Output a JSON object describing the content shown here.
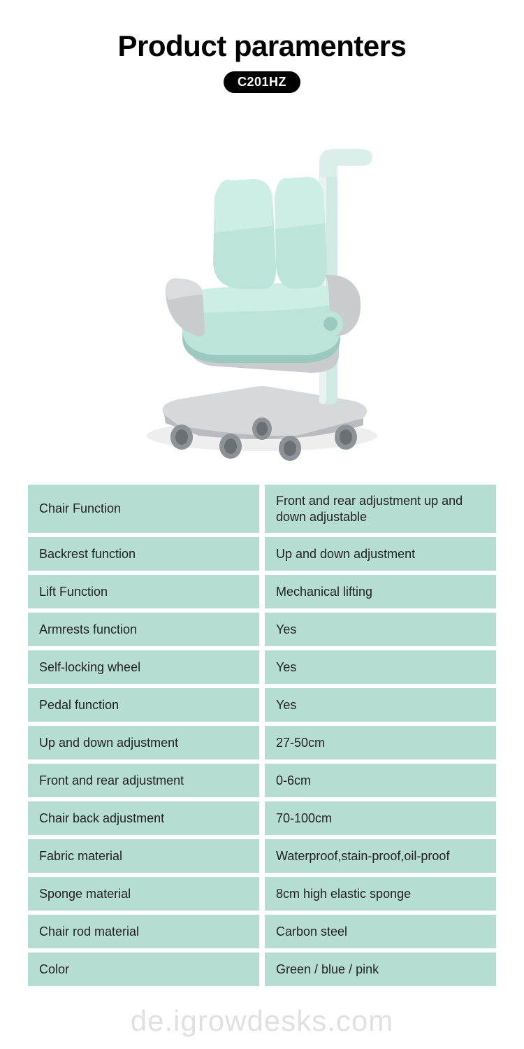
{
  "header": {
    "title": "Product paramenters",
    "model": "C201HZ"
  },
  "table": {
    "row_bg_color": "#b6ddd2",
    "row_gap_color": "#ffffff",
    "text_color": "#222222",
    "font_size": 18,
    "rows": [
      {
        "label": "Chair Function",
        "value": "Front and rear adjustment up and down adjustable"
      },
      {
        "label": "Backrest function",
        "value": "Up and down adjustment"
      },
      {
        "label": "Lift Function",
        "value": "Mechanical lifting"
      },
      {
        "label": "Armrests function",
        "value": "Yes"
      },
      {
        "label": "Self-locking wheel",
        "value": "Yes"
      },
      {
        "label": "Pedal function",
        "value": "Yes"
      },
      {
        "label": "Up and down adjustment",
        "value": "27-50cm"
      },
      {
        "label": "Front and rear adjustment",
        "value": "0-6cm"
      },
      {
        "label": "Chair back adjustment",
        "value": "70-100cm"
      },
      {
        "label": "Fabric material",
        "value": "Waterproof,stain-proof,oil-proof"
      },
      {
        "label": "Sponge material",
        "value": "8cm high elastic sponge"
      },
      {
        "label": "Chair rod material",
        "value": "Carbon steel"
      },
      {
        "label": "Color",
        "value": "Green / blue / pink"
      }
    ]
  },
  "product_image": {
    "primary_color": "#bde4db",
    "shadow_color": "#9cc9bf",
    "base_color": "#d6d9dc",
    "base_shadow": "#b8bcc1",
    "wheel_color": "#8d9297",
    "wheel_dark": "#6b7075",
    "frame_color": "#c9cccf",
    "highlight_color": "#e6f3ef"
  },
  "watermark": {
    "text": "de.igrowdesks.com",
    "color_rgba": "rgba(0,0,0,0.12)"
  }
}
